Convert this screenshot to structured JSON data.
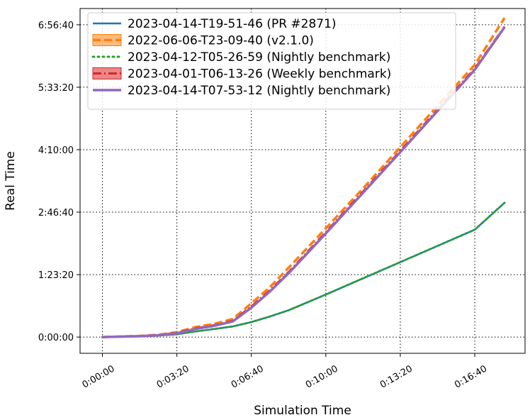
{
  "chart_data": {
    "type": "line",
    "xlabel": "Simulation Time",
    "ylabel": "Real Time",
    "x_ticks": [
      "0:00:00",
      "0:03:20",
      "0:06:40",
      "0:10:00",
      "0:13:20",
      "0:16:40"
    ],
    "y_ticks": [
      "0:00:00",
      "1:23:20",
      "2:46:40",
      "4:10:00",
      "5:33:20",
      "6:56:40"
    ],
    "x_tick_values_s": [
      0,
      200,
      400,
      600,
      800,
      1000
    ],
    "y_tick_values_s": [
      0,
      5000,
      10000,
      15000,
      20000,
      25000
    ],
    "xlim_s": [
      -60,
      1135
    ],
    "ylim_s": [
      -1300,
      26300
    ],
    "grid": true,
    "legend_position": "top-left",
    "series": [
      {
        "name": "2023-04-14-T19-51-46 (PR #2871)",
        "color": "#1f77b4",
        "style": "solid",
        "x_s": [
          0,
          100,
          150,
          200,
          250,
          300,
          350,
          400,
          450,
          500,
          600,
          700,
          800,
          900,
          1000,
          1080
        ],
        "y_s": [
          0,
          60,
          120,
          220,
          450,
          650,
          850,
          1200,
          1650,
          2150,
          3400,
          4700,
          6000,
          7300,
          8600,
          10750
        ]
      },
      {
        "name": "2022-06-06-T23-09-40 (v2.1.0)",
        "color": "#ff7f0e",
        "style": "dashed",
        "x_s": [
          0,
          100,
          150,
          200,
          250,
          300,
          350,
          400,
          450,
          500,
          600,
          700,
          800,
          900,
          1000,
          1080
        ],
        "y_s": [
          0,
          90,
          180,
          400,
          800,
          1050,
          1450,
          2700,
          4000,
          5550,
          8700,
          11900,
          15200,
          18500,
          21800,
          25550
        ]
      },
      {
        "name": "2023-04-12-T05-26-59 (Nightly benchmark)",
        "color": "#2ca02c",
        "style": "dotted",
        "x_s": [
          0,
          100,
          150,
          200,
          250,
          300,
          350,
          400,
          450,
          500,
          600,
          700,
          800,
          900,
          1000,
          1080
        ],
        "y_s": [
          0,
          60,
          120,
          220,
          450,
          650,
          850,
          1200,
          1650,
          2150,
          3400,
          4700,
          6000,
          7300,
          8600,
          10750
        ]
      },
      {
        "name": "2023-04-01-T06-13-26 (Weekly benchmark)",
        "color": "#d62728",
        "style": "dashdot",
        "x_s": [
          0,
          100,
          150,
          200,
          250,
          300,
          350,
          400,
          450,
          500,
          600,
          700,
          800,
          900,
          1000,
          1080
        ],
        "y_s": [
          0,
          80,
          160,
          340,
          700,
          950,
          1300,
          2450,
          3750,
          5200,
          8400,
          11650,
          14900,
          18200,
          21500,
          24850
        ]
      },
      {
        "name": "2023-04-14-T07-53-12 (Nightly benchmark)",
        "color": "#9467bd",
        "style": "solid-wide",
        "x_s": [
          0,
          100,
          150,
          200,
          250,
          300,
          350,
          400,
          450,
          500,
          600,
          700,
          800,
          900,
          1000,
          1080
        ],
        "y_s": [
          0,
          70,
          140,
          300,
          650,
          900,
          1250,
          2350,
          3650,
          5100,
          8300,
          11550,
          14800,
          18100,
          21400,
          24800
        ]
      }
    ]
  }
}
